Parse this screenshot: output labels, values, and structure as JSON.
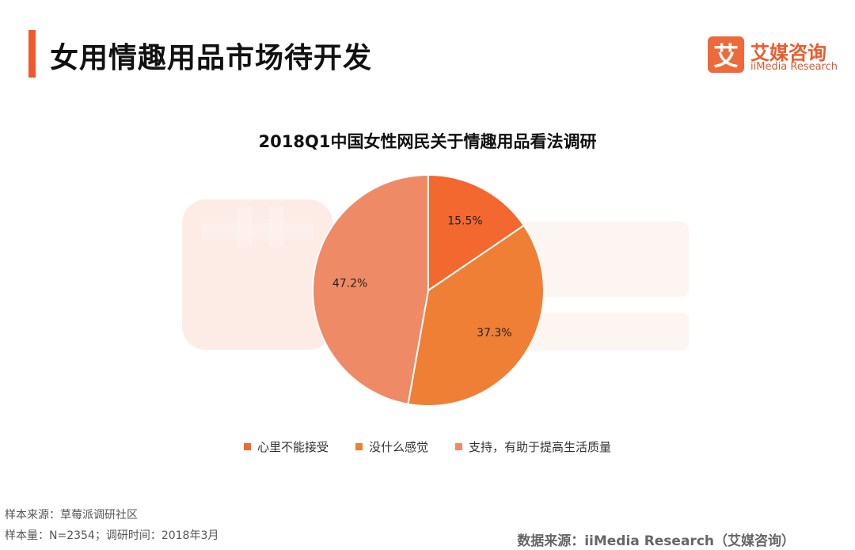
{
  "header": {
    "title": "女用情趣用品市场待开发",
    "logo_text_cn": "艾媒咨询",
    "logo_text_en": "iiMedia Research",
    "logo_glyph": "艾"
  },
  "colors": {
    "accent": "#ee5a2b"
  },
  "chart_data": {
    "type": "pie",
    "title": "2018Q1中国女性网民关于情趣用品看法调研",
    "slices": [
      {
        "label": "心里不能接受",
        "value": 15.5,
        "display": "15.5%",
        "color": "#f2682f"
      },
      {
        "label": "没什么感觉",
        "value": 37.3,
        "display": "37.3%",
        "color": "#ee7f35"
      },
      {
        "label": "支持，有助于提高生活质量",
        "value": 47.2,
        "display": "47.2%",
        "color": "#ef8a67"
      }
    ],
    "start_angle_deg": 0,
    "direction": "clockwise",
    "legend_position": "bottom"
  },
  "footer": {
    "sample_source": "样本来源：草莓派调研社区",
    "sample_size": "样本量：N=2354；调研时间：2018年3月",
    "data_source": "数据来源：iiMedia Research（艾媒咨询）"
  }
}
